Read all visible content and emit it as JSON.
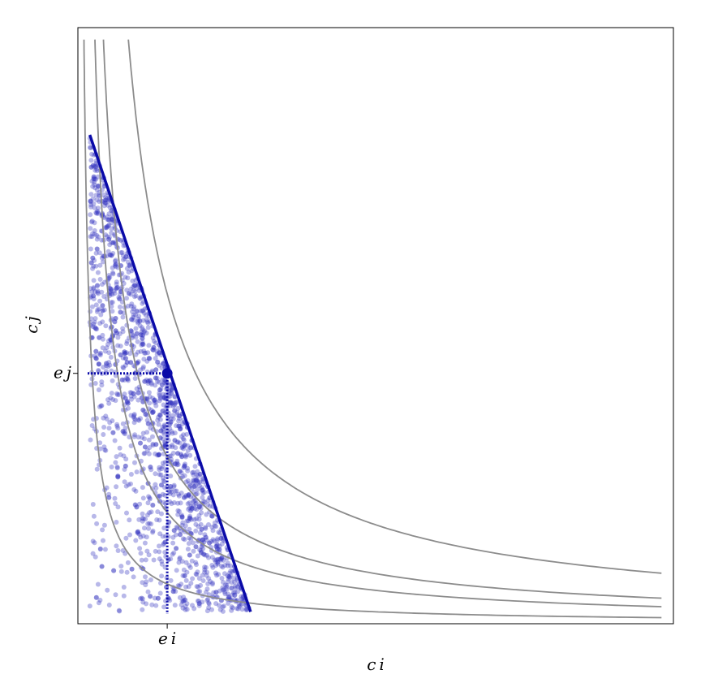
{
  "chart_data": {
    "type": "scatter",
    "title": "",
    "xlabel": "c i",
    "ylabel": "c j",
    "xlim": [
      0,
      10
    ],
    "ylim": [
      0,
      10
    ],
    "grid": false,
    "x_tick_labels": [
      {
        "value": 1.5,
        "label": "e i"
      }
    ],
    "y_tick_labels": [
      {
        "value": 4.2,
        "label": "e j"
      }
    ],
    "endowment_point": {
      "x": 1.5,
      "y": 4.2
    },
    "budget_line": {
      "x": [
        0.2,
        2.9
      ],
      "y": [
        8.2,
        0.2
      ]
    },
    "indifference_curves": [
      {
        "k": 1.0
      },
      {
        "k": 2.8
      },
      {
        "k": 4.2
      },
      {
        "k": 8.3
      }
    ],
    "scatter_sample_count": 1700,
    "colors": {
      "budget_line": "#0a0aa8",
      "points": "#3535c0",
      "curves": "#8c8c8c",
      "dotted_guides": "#0a0aa8"
    }
  }
}
